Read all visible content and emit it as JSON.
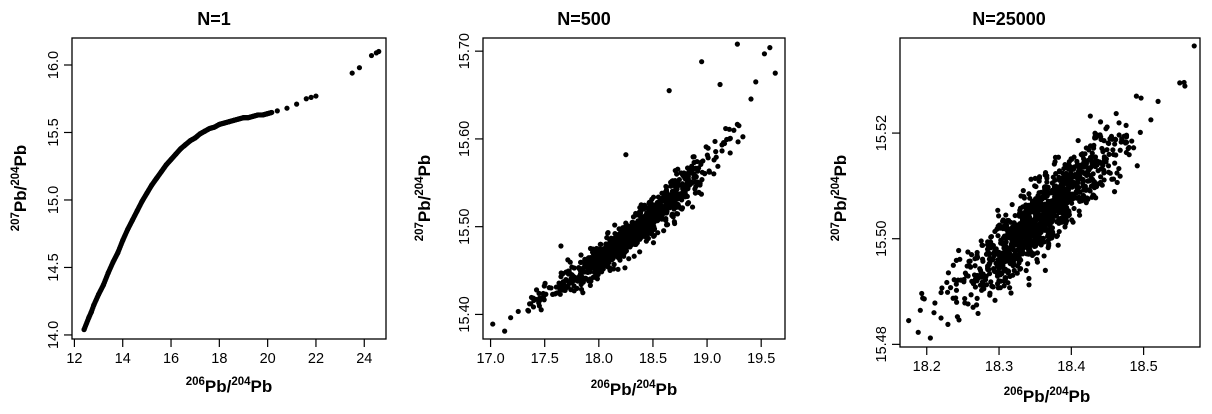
{
  "chart_data": [
    {
      "type": "scatter",
      "title": "N=1",
      "xlabel": {
        "sup1": "206",
        "base1": "Pb/",
        "sup2": "204",
        "base2": "Pb"
      },
      "ylabel": {
        "sup1": "207",
        "base1": "Pb/",
        "sup2": "204",
        "base2": "Pb"
      },
      "xlim": [
        11.9,
        24.9
      ],
      "ylim": [
        13.97,
        16.2
      ],
      "xticks": [
        12,
        14,
        16,
        18,
        20,
        22,
        24
      ],
      "yticks": [
        14.0,
        14.5,
        15.0,
        15.5,
        16.0
      ],
      "xtick_labels": [
        "12",
        "14",
        "16",
        "18",
        "20",
        "22",
        "24"
      ],
      "ytick_labels": [
        "14.0",
        "14.5",
        "15.0",
        "15.5",
        "16.0"
      ],
      "curve_points": [
        [
          12.4,
          14.04
        ],
        [
          12.6,
          14.13
        ],
        [
          12.7,
          14.17
        ],
        [
          12.8,
          14.22
        ],
        [
          13.0,
          14.3
        ],
        [
          13.2,
          14.37
        ],
        [
          13.4,
          14.46
        ],
        [
          13.6,
          14.54
        ],
        [
          13.8,
          14.61
        ],
        [
          14.0,
          14.7
        ],
        [
          14.2,
          14.78
        ],
        [
          14.4,
          14.85
        ],
        [
          14.6,
          14.92
        ],
        [
          14.8,
          14.99
        ],
        [
          15.0,
          15.05
        ],
        [
          15.2,
          15.11
        ],
        [
          15.4,
          15.16
        ],
        [
          15.6,
          15.21
        ],
        [
          15.8,
          15.26
        ],
        [
          16.0,
          15.3
        ],
        [
          16.2,
          15.34
        ],
        [
          16.4,
          15.38
        ],
        [
          16.6,
          15.41
        ],
        [
          16.8,
          15.44
        ],
        [
          17.0,
          15.46
        ],
        [
          17.2,
          15.49
        ],
        [
          17.4,
          15.51
        ],
        [
          17.6,
          15.53
        ],
        [
          17.8,
          15.54
        ],
        [
          18.0,
          15.56
        ],
        [
          18.2,
          15.57
        ],
        [
          18.4,
          15.58
        ],
        [
          18.6,
          15.59
        ],
        [
          18.8,
          15.6
        ],
        [
          19.0,
          15.61
        ],
        [
          19.2,
          15.61
        ],
        [
          19.4,
          15.62
        ],
        [
          19.6,
          15.63
        ],
        [
          19.8,
          15.63
        ],
        [
          20.0,
          15.64
        ],
        [
          20.4,
          15.66
        ],
        [
          20.8,
          15.68
        ],
        [
          21.2,
          15.71
        ],
        [
          21.6,
          15.75
        ],
        [
          21.8,
          15.76
        ],
        [
          22.0,
          15.77
        ],
        [
          23.5,
          15.94
        ],
        [
          23.8,
          15.98
        ],
        [
          24.3,
          16.07
        ],
        [
          24.5,
          16.09
        ],
        [
          24.6,
          16.1
        ]
      ],
      "dense_curve": {
        "x_from": 12.4,
        "x_to": 20.2,
        "step": 0.03
      }
    },
    {
      "type": "scatter",
      "title": "N=500",
      "xlabel": {
        "sup1": "206",
        "base1": "Pb/",
        "sup2": "204",
        "base2": "Pb"
      },
      "ylabel": {
        "sup1": "207",
        "base1": "Pb/",
        "sup2": "204",
        "base2": "Pb"
      },
      "xlim": [
        16.93,
        19.72
      ],
      "ylim": [
        15.372,
        15.715
      ],
      "xticks": [
        17.0,
        17.5,
        18.0,
        18.5,
        19.0,
        19.5
      ],
      "yticks": [
        15.4,
        15.5,
        15.6,
        15.7
      ],
      "xtick_labels": [
        "17.0",
        "17.5",
        "18.0",
        "18.5",
        "19.0",
        "19.5"
      ],
      "ytick_labels": [
        "15.40",
        "15.50",
        "15.60",
        "15.70"
      ],
      "cloud": {
        "n": 950,
        "x_range": [
          17.05,
          19.6
        ],
        "x_center": 18.3,
        "x_spread": 0.38,
        "trend_points": [
          [
            17.0,
            15.39
          ],
          [
            17.5,
            15.42
          ],
          [
            18.0,
            15.46
          ],
          [
            18.5,
            15.51
          ],
          [
            19.0,
            15.57
          ],
          [
            19.6,
            15.66
          ]
        ],
        "noise_base": 0.004,
        "noise_slope": 0.012
      },
      "outliers": [
        [
          17.02,
          15.389
        ],
        [
          17.13,
          15.381
        ],
        [
          17.65,
          15.478
        ],
        [
          18.25,
          15.582
        ],
        [
          19.28,
          15.708
        ],
        [
          19.58,
          15.704
        ],
        [
          19.63,
          15.675
        ],
        [
          19.53,
          15.697
        ],
        [
          18.95,
          15.688
        ],
        [
          18.65,
          15.655
        ],
        [
          19.12,
          15.662
        ],
        [
          19.45,
          15.665
        ]
      ]
    },
    {
      "type": "scatter",
      "title": "N=25000",
      "xlabel": {
        "sup1": "206",
        "base1": "Pb/",
        "sup2": "204",
        "base2": "Pb"
      },
      "ylabel": {
        "sup1": "207",
        "base1": "Pb/",
        "sup2": "204",
        "base2": "Pb"
      },
      "xlim": [
        18.163,
        18.578
      ],
      "ylim": [
        15.4795,
        15.538
      ],
      "xticks": [
        18.2,
        18.3,
        18.4,
        18.5
      ],
      "yticks": [
        15.48,
        15.5,
        15.52
      ],
      "xtick_labels": [
        "18.2",
        "18.3",
        "18.4",
        "18.5"
      ],
      "ytick_labels": [
        "15.48",
        "15.50",
        "15.52"
      ],
      "cloud": {
        "n": 1100,
        "x_range": [
          18.18,
          18.56
        ],
        "x_center": 18.36,
        "x_spread": 0.055,
        "trend_points": [
          [
            18.18,
            15.4845
          ],
          [
            18.3,
            15.4965
          ],
          [
            18.4,
            15.5095
          ],
          [
            18.5,
            15.5215
          ],
          [
            18.56,
            15.529
          ]
        ],
        "noise_base": 0.0032,
        "noise_slope": 0.0
      },
      "outliers": [
        [
          18.175,
          15.4845
        ],
        [
          18.205,
          15.4812
        ],
        [
          18.55,
          15.5295
        ],
        [
          18.57,
          15.5365
        ],
        [
          18.52,
          15.526
        ],
        [
          18.49,
          15.527
        ],
        [
          18.21,
          15.486
        ]
      ]
    }
  ]
}
